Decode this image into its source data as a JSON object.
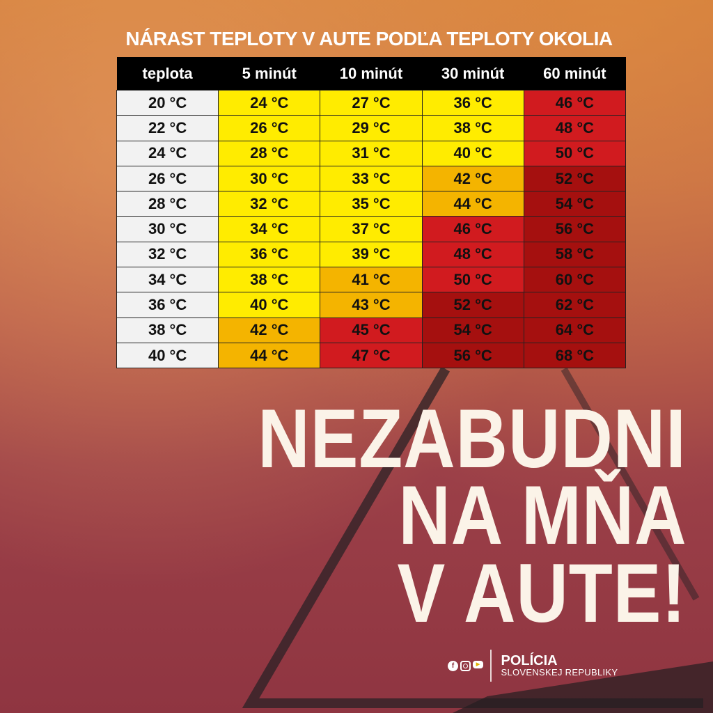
{
  "title": "NÁRAST TEPLOTY V AUTE PODĽA TEPLOTY OKOLIA",
  "chart_data": {
    "type": "table",
    "columns": [
      "teplota",
      "5 minút",
      "10 minút",
      "30 minút",
      "60 minút"
    ],
    "unit": "°C",
    "rows": [
      [
        20,
        24,
        27,
        36,
        46
      ],
      [
        22,
        26,
        29,
        38,
        48
      ],
      [
        24,
        28,
        31,
        40,
        50
      ],
      [
        26,
        30,
        33,
        42,
        52
      ],
      [
        28,
        32,
        35,
        44,
        54
      ],
      [
        30,
        34,
        37,
        46,
        56
      ],
      [
        32,
        36,
        39,
        48,
        58
      ],
      [
        34,
        38,
        41,
        50,
        60
      ],
      [
        36,
        40,
        43,
        52,
        62
      ],
      [
        38,
        42,
        45,
        54,
        64
      ],
      [
        40,
        44,
        47,
        56,
        68
      ]
    ],
    "colors": {
      "ambient": "#f2f2f2",
      "yellow": "#ffec00",
      "orange": "#f4b400",
      "red": "#d11b1f",
      "dark_red": "#a5100f",
      "header": "#000000"
    }
  },
  "headline": [
    "NEZABUDNI",
    "NA MŇA",
    "V AUTE!"
  ],
  "footer": {
    "org_line1": "POLÍCIA",
    "org_line2": "SLOVENSKEJ REPUBLIKY",
    "social_icons": [
      "facebook-icon",
      "instagram-icon",
      "youtube-icon"
    ]
  }
}
